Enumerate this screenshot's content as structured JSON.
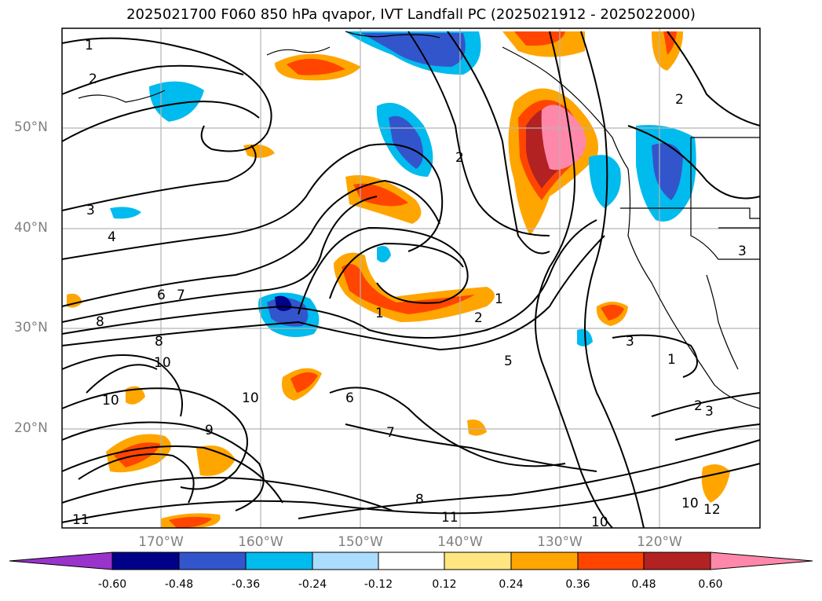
{
  "title": "2025021700 F060 850 hPa qvapor, IVT Landfall PC (2025021912 - 2025022000)",
  "lat_labels": [
    "50°N",
    "40°N",
    "30°N",
    "20°N"
  ],
  "lon_labels": [
    "170°W",
    "160°W",
    "150°W",
    "140°W",
    "130°W",
    "120°W"
  ],
  "contour_labels": [
    "1",
    "2",
    "2",
    "3",
    "4",
    "6",
    "7",
    "8",
    "8",
    "10",
    "10",
    "1",
    "2",
    "1",
    "2",
    "3",
    "5",
    "6",
    "7",
    "8",
    "9",
    "10",
    "11",
    "11",
    "10",
    "2",
    "3",
    "10",
    "12",
    "1",
    "3"
  ],
  "colorbar": {
    "ticks": [
      "-0.60",
      "-0.48",
      "-0.36",
      "-0.24",
      "-0.12",
      "0.12",
      "0.24",
      "0.36",
      "0.48",
      "0.60"
    ],
    "colors": [
      "#9933cc",
      "#000088",
      "#3355cc",
      "#00bbee",
      "#aaddff",
      "#ffffff",
      "#ffe680",
      "#ffa500",
      "#ff4500",
      "#b22222",
      "#ff88aa"
    ]
  }
}
